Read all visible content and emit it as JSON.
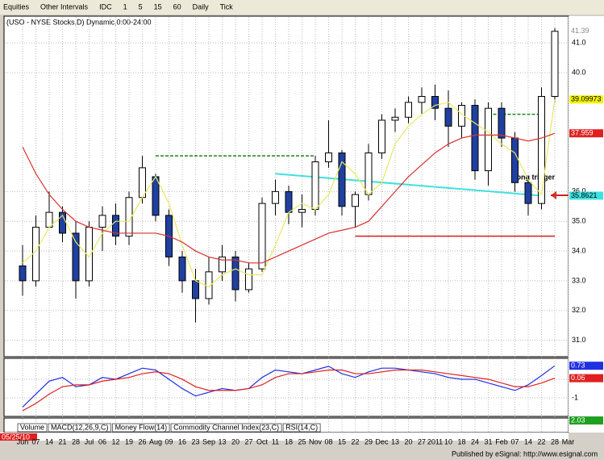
{
  "toolbar": [
    "Equities",
    "Other Intervals",
    "IDC",
    "1",
    "5",
    "15",
    "60",
    "Daily",
    "Tick"
  ],
  "chart_data": {
    "type": "candlestick",
    "title": "(USO - NYSE Stocks,D) Dynamic,0:00-24:00",
    "start_label": "05/25/10",
    "categories": [
      "Jun",
      "07",
      "14",
      "21",
      "28",
      "Jul",
      "06",
      "12",
      "19",
      "26",
      "Aug",
      "09",
      "16",
      "23",
      "Sep",
      "13",
      "20",
      "27",
      "Oct",
      "11",
      "18",
      "25",
      "Nov",
      "08",
      "15",
      "22",
      "29",
      "Dec",
      "13",
      "20",
      "27",
      "2011",
      "10",
      "18",
      "24",
      "31",
      "Feb",
      "07",
      "14",
      "22",
      "28",
      "Mar"
    ],
    "open": [
      33.5,
      33,
      34.8,
      35.3,
      34.6,
      33,
      34.8,
      35.2,
      34.5,
      35.8,
      36.5,
      35.2,
      33.8,
      33,
      32.4,
      33.3,
      33.8,
      32.7,
      33.4,
      35.6,
      36,
      35.3,
      35.4,
      37,
      37.3,
      35.5,
      35.9,
      37.3,
      38.4,
      38.5,
      39,
      39.2,
      38.8,
      38.2,
      38.9,
      36.7,
      38.8,
      37.8,
      36.3,
      35.6,
      39.2,
      null
    ],
    "high": [
      34.2,
      35.2,
      36,
      35.5,
      35,
      35,
      35.5,
      35.6,
      36,
      37.2,
      36.6,
      35.4,
      34,
      33.4,
      33.8,
      34.2,
      34,
      33.6,
      35.8,
      36.4,
      36.2,
      35.9,
      37.2,
      38.4,
      37.4,
      36,
      37.6,
      38.6,
      38.8,
      39.2,
      39.5,
      39.6,
      39.4,
      39,
      39.1,
      39,
      39,
      38,
      36.5,
      39.5,
      41.5,
      null
    ],
    "low": [
      32.5,
      32.8,
      34.8,
      34.3,
      32.4,
      32.8,
      34,
      34.2,
      34.2,
      35.6,
      35,
      33.5,
      32.6,
      31.6,
      32.2,
      33,
      32.3,
      32.6,
      33.3,
      35.2,
      34.9,
      34.8,
      35.2,
      36.8,
      35.2,
      34.8,
      35.7,
      37.1,
      38,
      38.3,
      38.6,
      38.4,
      37.5,
      37.8,
      36.4,
      36.2,
      37.5,
      36,
      35.2,
      35.4,
      39,
      null
    ],
    "close": [
      33,
      34.8,
      35.3,
      34.6,
      33,
      34.8,
      35.2,
      34.5,
      35.8,
      36.8,
      35.2,
      33.8,
      33,
      32.4,
      33.3,
      33.8,
      32.7,
      33.4,
      35.6,
      36,
      35.3,
      35.4,
      37,
      37.3,
      35.5,
      35.9,
      37.3,
      38.4,
      38.5,
      39,
      39.2,
      38.8,
      38.2,
      38.9,
      36.7,
      38.8,
      37.8,
      36.3,
      35.6,
      39.2,
      41.39,
      null
    ],
    "series": [
      {
        "name": "MA short",
        "color": "#e8e860",
        "values": [
          33.6,
          34,
          34.8,
          35.2,
          34.3,
          33.8,
          34.6,
          35,
          35,
          35.8,
          36.5,
          35.6,
          34.2,
          33,
          32.8,
          33.2,
          33.4,
          33.2,
          33.2,
          34.2,
          35.3,
          35.6,
          35.4,
          35.9,
          37,
          36.6,
          35.9,
          36.3,
          37.6,
          38.2,
          38.6,
          38.9,
          39,
          38.6,
          38.3,
          38,
          37.6,
          37.3,
          36.4,
          35.9,
          39.09973,
          null
        ],
        "label_bg": "#f4f400"
      },
      {
        "name": "MA long",
        "color": "#d83030",
        "values": [
          37.5,
          36.6,
          35.9,
          35.4,
          35,
          34.8,
          34.7,
          34.6,
          34.6,
          34.6,
          34.6,
          34.5,
          34.3,
          34,
          33.8,
          33.7,
          33.7,
          33.6,
          33.6,
          33.8,
          34,
          34.2,
          34.4,
          34.6,
          34.7,
          34.8,
          35,
          35.5,
          36,
          36.5,
          36.9,
          37.3,
          37.6,
          37.8,
          37.9,
          37.9,
          37.9,
          37.8,
          37.7,
          37.8,
          37.959,
          null
        ],
        "label_bg": "#e02020"
      }
    ],
    "levels": [
      {
        "value": 37.2,
        "color": "#208020",
        "range": [
          10,
          22
        ]
      },
      {
        "value": 38.6,
        "color": "#208020",
        "range": [
          35,
          39
        ]
      },
      {
        "value": 34.5,
        "color": "#d02020",
        "range": [
          25,
          40
        ]
      }
    ],
    "trendline": {
      "values": [
        36.6,
        35.8621
      ],
      "range": [
        19,
        39
      ],
      "color": "#40e0e0"
    },
    "annotation": "Long trigger",
    "ylim": [
      30.5,
      41.9
    ],
    "yticks": [
      {
        "value": 31,
        "label": "31.0"
      },
      {
        "value": 32,
        "label": "32.0"
      },
      {
        "value": 33,
        "label": "33.0"
      },
      {
        "value": 34,
        "label": "34.0"
      },
      {
        "value": 35,
        "label": "35.0"
      },
      {
        "value": 36,
        "label": "36.0"
      },
      {
        "value": 40,
        "label": "40.0"
      },
      {
        "value": 41,
        "label": "41.0"
      }
    ],
    "up_color": "#ffffff",
    "down_color": "#2040a0",
    "grid": true
  },
  "macd": {
    "type": "line",
    "ylim": [
      -1.96,
      1.0
    ],
    "yticks": [
      0,
      -1
    ],
    "series": [
      {
        "name": "MACD",
        "color": "#2030e0",
        "values": [
          -1.5,
          -0.8,
          -0.1,
          0.1,
          -0.4,
          -0.3,
          0.1,
          0,
          0.3,
          0.6,
          0.5,
          0,
          -0.5,
          -0.9,
          -0.7,
          -0.5,
          -0.6,
          -0.5,
          0.1,
          0.5,
          0.4,
          0.3,
          0.5,
          0.7,
          0.3,
          0.1,
          0.4,
          0.6,
          0.6,
          0.5,
          0.4,
          0.3,
          0.1,
          0,
          0,
          -0.2,
          -0.4,
          -0.6,
          -0.3,
          0.2,
          0.73,
          null
        ]
      },
      {
        "name": "Signal",
        "color": "#e02020",
        "values": [
          -1.7,
          -1.3,
          -0.8,
          -0.4,
          -0.3,
          -0.3,
          -0.1,
          0,
          0.1,
          0.3,
          0.4,
          0.3,
          0,
          -0.4,
          -0.6,
          -0.6,
          -0.6,
          -0.5,
          -0.3,
          0.1,
          0.3,
          0.3,
          0.4,
          0.5,
          0.5,
          0.3,
          0.3,
          0.4,
          0.5,
          0.5,
          0.5,
          0.4,
          0.3,
          0.2,
          0.1,
          0,
          -0.2,
          -0.4,
          -0.4,
          -0.2,
          0.06,
          null
        ]
      }
    ]
  },
  "bottom_pane_value": 2.03,
  "tabs": [
    "Volume",
    "MACD(12,26,9,C)",
    "Money Flow(14)",
    "Commodity Channel Index(23,C)",
    "RSI(14,C)"
  ],
  "footer": "Published by eSignal: http://www.esignal.com"
}
